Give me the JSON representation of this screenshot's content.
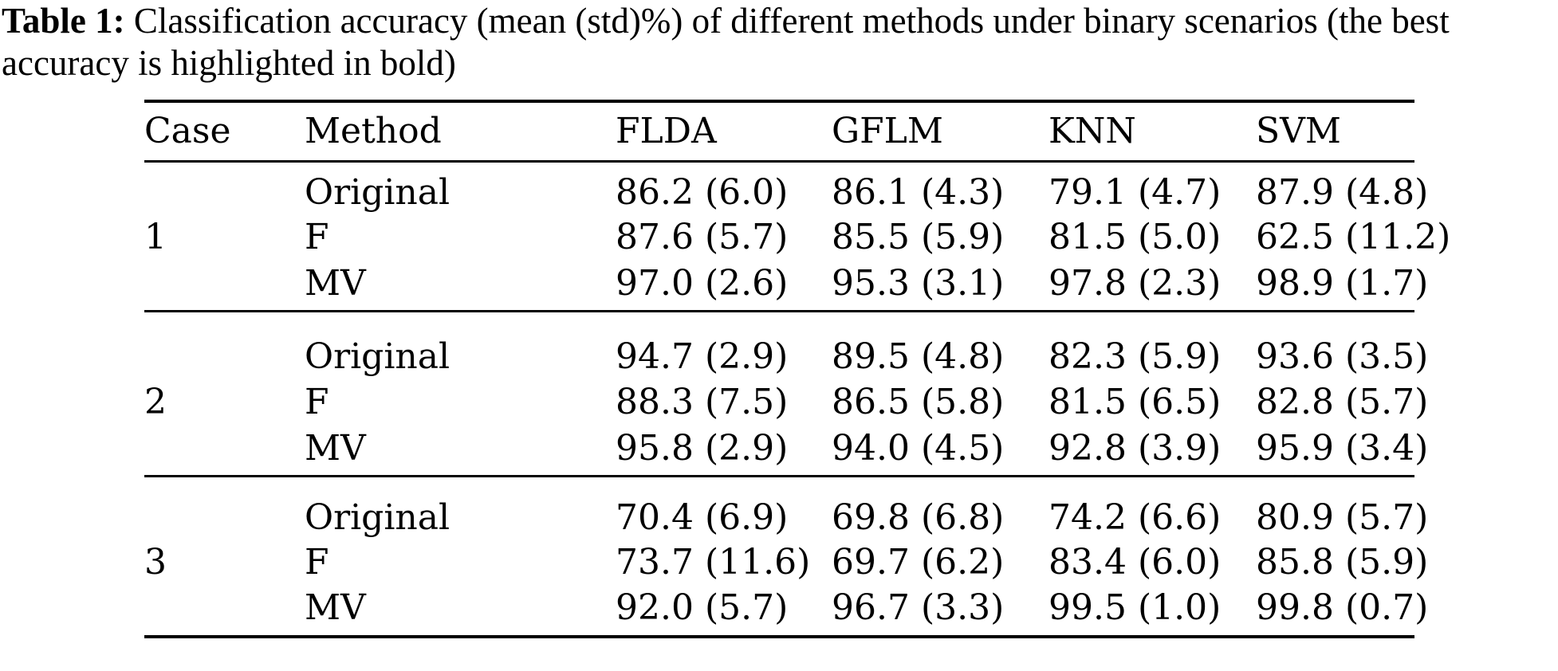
{
  "caption": {
    "label": "Table 1:",
    "text": " Classification accuracy (mean (std)%) of different methods under binary scenarios (the best accuracy is highlighted in bold)"
  },
  "table": {
    "columns": [
      "Case",
      "Method",
      "FLDA",
      "GFLM",
      "KNN",
      "SVM"
    ],
    "groups": [
      {
        "case": "1",
        "rows": [
          {
            "method": "Original",
            "values": [
              "86.2 (6.0)",
              "86.1 (4.3)",
              "79.1 (4.7)",
              "87.9 (4.8)"
            ],
            "bold_index": null
          },
          {
            "method": "F",
            "values": [
              "87.6 (5.7)",
              "85.5 (5.9)",
              "81.5 (5.0)",
              "62.5 (11.2)"
            ],
            "bold_index": null
          },
          {
            "method": "MV",
            "values": [
              "97.0 (2.6)",
              "95.3 (3.1)",
              "97.8 (2.3)",
              "98.9 (1.7)"
            ],
            "bold_index": 3
          }
        ]
      },
      {
        "case": "2",
        "rows": [
          {
            "method": "Original",
            "values": [
              "94.7 (2.9)",
              "89.5 (4.8)",
              "82.3 (5.9)",
              "93.6 (3.5)"
            ],
            "bold_index": null
          },
          {
            "method": "F",
            "values": [
              "88.3 (7.5)",
              "86.5 (5.8)",
              "81.5 (6.5)",
              "82.8 (5.7)"
            ],
            "bold_index": null
          },
          {
            "method": "MV",
            "values": [
              "95.8 (2.9)",
              "94.0 (4.5)",
              "92.8 (3.9)",
              "95.9 (3.4)"
            ],
            "bold_index": 3
          }
        ]
      },
      {
        "case": "3",
        "rows": [
          {
            "method": "Original",
            "values": [
              "70.4 (6.9)",
              "69.8 (6.8)",
              "74.2 (6.6)",
              "80.9 (5.7)"
            ],
            "bold_index": null
          },
          {
            "method": "F",
            "values": [
              "73.7 (11.6)",
              "69.7 (6.2)",
              "83.4 (6.0)",
              "85.8 (5.9)"
            ],
            "bold_index": null
          },
          {
            "method": "MV",
            "values": [
              "92.0 (5.7)",
              "96.7 (3.3)",
              "99.5 (1.0)",
              "99.8 (0.7)"
            ],
            "bold_index": 3
          }
        ]
      }
    ]
  }
}
